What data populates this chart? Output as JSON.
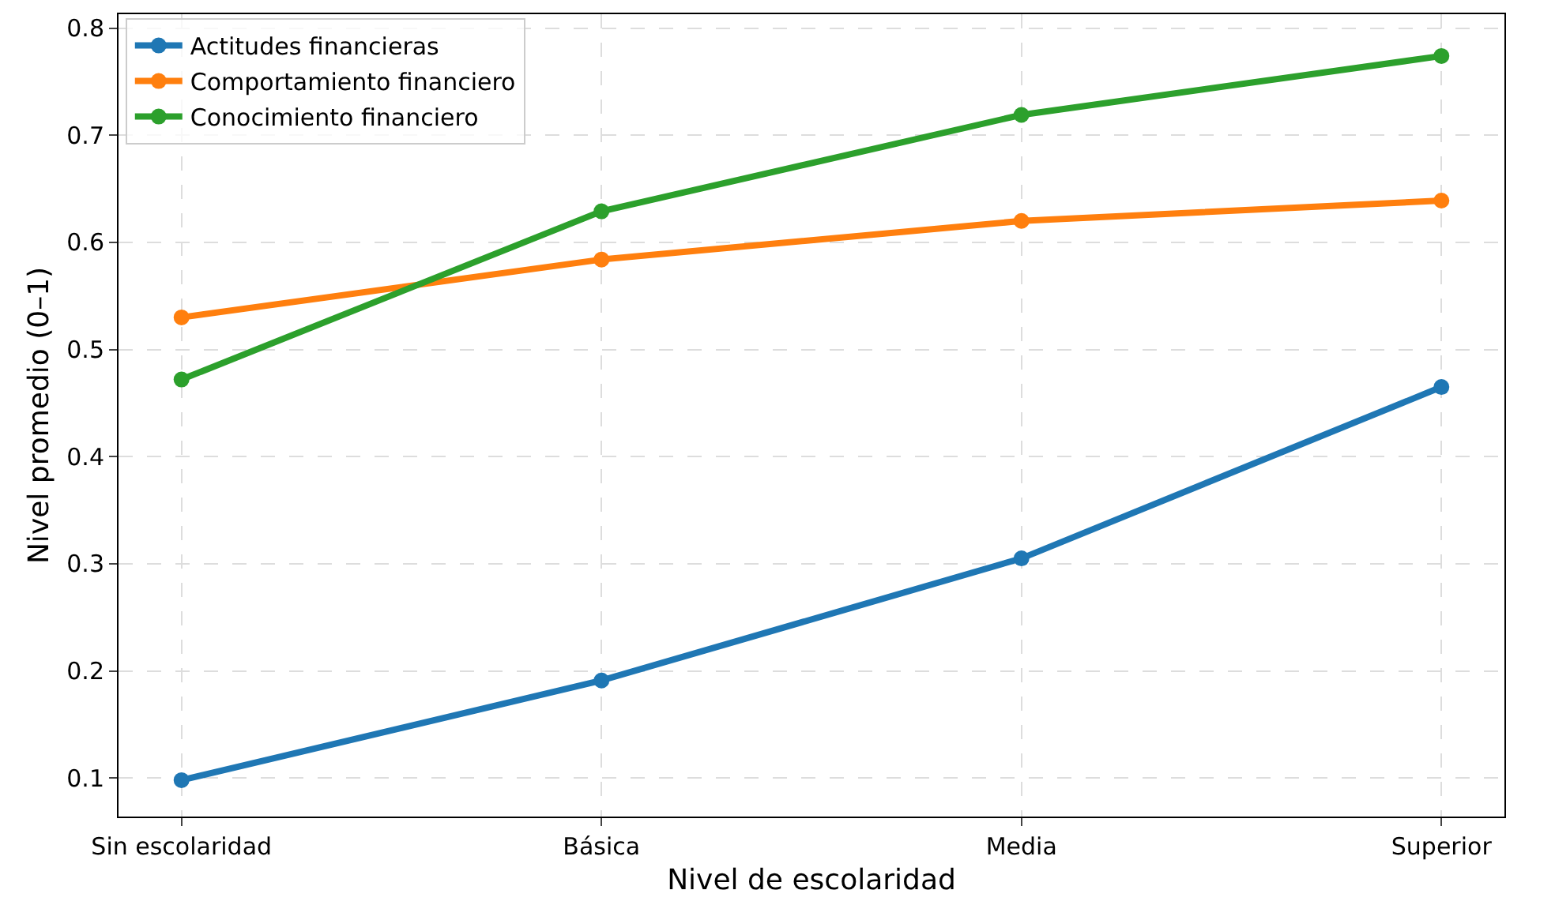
{
  "chart_data": {
    "type": "line",
    "xlabel": "Nivel de escolaridad",
    "ylabel": "Nivel promedio (0–1)",
    "categories": [
      "Sin escolaridad",
      "Básica",
      "Media",
      "Superior"
    ],
    "series": [
      {
        "name": "Actitudes financieras",
        "color": "#1f77b4",
        "values": [
          0.098,
          0.191,
          0.305,
          0.465
        ]
      },
      {
        "name": "Comportamiento financiero",
        "color": "#ff7f0e",
        "values": [
          0.53,
          0.584,
          0.62,
          0.639
        ]
      },
      {
        "name": "Conocimiento financiero",
        "color": "#2ca02c",
        "values": [
          0.472,
          0.629,
          0.719,
          0.774
        ]
      }
    ],
    "ylim": [
      0.064,
      0.813
    ],
    "yticks": [
      {
        "value": 0.1,
        "label": "0.1"
      },
      {
        "value": 0.2,
        "label": "0.2"
      },
      {
        "value": 0.3,
        "label": "0.3"
      },
      {
        "value": 0.4,
        "label": "0.4"
      },
      {
        "value": 0.5,
        "label": "0.5"
      },
      {
        "value": 0.6,
        "label": "0.6"
      },
      {
        "value": 0.7,
        "label": "0.7"
      },
      {
        "value": 0.8,
        "label": "0.8"
      }
    ],
    "grid": true,
    "legend": "top left",
    "marker": "circle",
    "line_style": "solid"
  }
}
